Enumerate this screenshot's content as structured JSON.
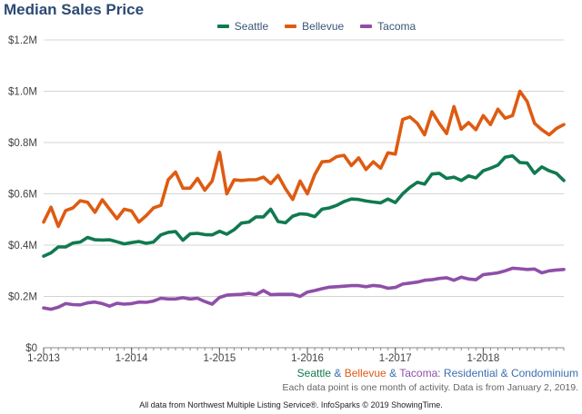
{
  "chart_data": {
    "type": "line",
    "title": "Median Sales Price",
    "ylim": [
      0,
      1200000
    ],
    "yticks": [
      0,
      200000,
      400000,
      600000,
      800000,
      1000000,
      1200000
    ],
    "ytick_labels": [
      "$0",
      "$0.2M",
      "$0.4M",
      "$0.6M",
      "$0.8M",
      "$1.0M",
      "$1.2M"
    ],
    "xticks": [
      0,
      12,
      24,
      36,
      48,
      60
    ],
    "xtick_labels": [
      "1-2013",
      "1-2014",
      "1-2015",
      "1-2016",
      "1-2017",
      "1-2018"
    ],
    "x_unit": "month index from 1-2013",
    "grid": true,
    "legend_position": "top",
    "series": [
      {
        "name": "Seattle",
        "color": "#107a4f",
        "values": [
          357000,
          370000,
          393000,
          393000,
          408000,
          412000,
          430000,
          421000,
          420000,
          421000,
          413000,
          405000,
          410000,
          414000,
          407000,
          412000,
          440000,
          450000,
          453000,
          419000,
          444000,
          446000,
          441000,
          440000,
          454000,
          443000,
          460000,
          486000,
          490000,
          510000,
          510000,
          540000,
          492000,
          487000,
          513000,
          522000,
          520000,
          511000,
          540000,
          545000,
          555000,
          570000,
          580000,
          578000,
          572000,
          568000,
          565000,
          580000,
          566000,
          600000,
          625000,
          645000,
          638000,
          677000,
          680000,
          660000,
          665000,
          652000,
          670000,
          662000,
          690000,
          700000,
          712000,
          743000,
          748000,
          722000,
          720000,
          680000,
          705000,
          690000,
          680000,
          652000
        ]
      },
      {
        "name": "Bellevue",
        "color": "#de5b12",
        "values": [
          490000,
          548000,
          473000,
          535000,
          545000,
          573000,
          567000,
          528000,
          577000,
          540000,
          503000,
          540000,
          533000,
          490000,
          515000,
          545000,
          555000,
          655000,
          685000,
          622000,
          622000,
          660000,
          614000,
          650000,
          762000,
          600000,
          655000,
          652000,
          655000,
          655000,
          665000,
          640000,
          672000,
          620000,
          578000,
          650000,
          600000,
          675000,
          725000,
          727000,
          745000,
          750000,
          710000,
          740000,
          695000,
          725000,
          700000,
          760000,
          755000,
          890000,
          900000,
          875000,
          830000,
          920000,
          875000,
          835000,
          940000,
          852000,
          878000,
          850000,
          905000,
          870000,
          930000,
          895000,
          905000,
          1000000,
          960000,
          875000,
          850000,
          830000,
          855000,
          870000
        ]
      },
      {
        "name": "Tacoma",
        "color": "#8e4fa8",
        "values": [
          155000,
          150000,
          158000,
          172000,
          168000,
          167000,
          175000,
          178000,
          172000,
          162000,
          173000,
          170000,
          172000,
          178000,
          177000,
          182000,
          193000,
          190000,
          190000,
          195000,
          190000,
          193000,
          180000,
          170000,
          196000,
          205000,
          207000,
          208000,
          212000,
          207000,
          223000,
          207000,
          208000,
          208000,
          208000,
          200000,
          217000,
          223000,
          230000,
          236000,
          238000,
          240000,
          242000,
          242000,
          238000,
          243000,
          240000,
          232000,
          235000,
          248000,
          252000,
          256000,
          263000,
          265000,
          270000,
          273000,
          263000,
          275000,
          268000,
          265000,
          285000,
          288000,
          292000,
          300000,
          310000,
          308000,
          305000,
          307000,
          292000,
          300000,
          303000,
          305000
        ]
      }
    ],
    "footer": {
      "series_names": [
        "Seattle",
        "Bellevue",
        "Tacoma"
      ],
      "separator": "&",
      "series_suffix": ": Residential & Condominium",
      "note": "Each data point is one month of activity. Data is from January 2, 2019.",
      "source": "All data from Northwest Multiple Listing Service®. InfoSparks © 2019 ShowingTime."
    }
  }
}
